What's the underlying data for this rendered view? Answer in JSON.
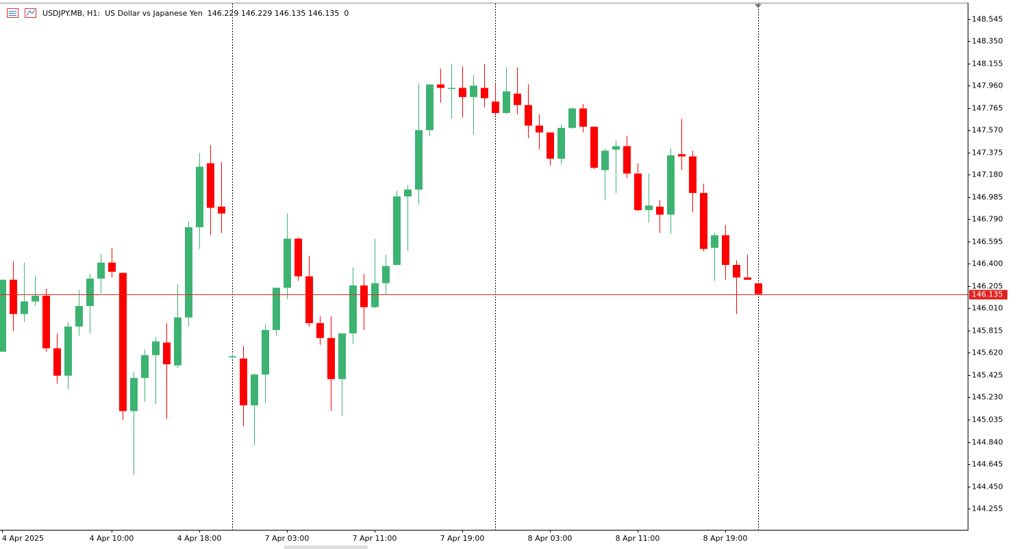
{
  "chart_data": {
    "type": "candlestick",
    "title": "USDJPY.MB, H1:  US Dollar vs Japanese Yen  146.229 146.229 146.135 146.135  0",
    "categories": [
      "4 Apr 2025",
      null,
      null,
      null,
      null,
      null,
      null,
      null,
      null,
      null,
      "4 Apr 10:00",
      null,
      null,
      null,
      null,
      null,
      null,
      null,
      "4 Apr 18:00",
      null,
      null,
      null,
      null,
      null,
      null,
      null,
      "7 Apr 03:00",
      null,
      null,
      null,
      null,
      null,
      null,
      null,
      "7 Apr 11:00",
      null,
      null,
      null,
      null,
      null,
      null,
      null,
      "7 Apr 19:00",
      null,
      null,
      null,
      null,
      null,
      null,
      null,
      "8 Apr 03:00",
      null,
      null,
      null,
      null,
      null,
      null,
      null,
      "8 Apr 11:00",
      null,
      null,
      null,
      null,
      null,
      null,
      null,
      "8 Apr 19:00",
      null,
      null,
      null
    ],
    "open": [
      145.63,
      146.26,
      145.96,
      146.07,
      146.12,
      145.66,
      145.42,
      145.85,
      146.03,
      146.27,
      146.41,
      146.32,
      145.11,
      145.4,
      145.6,
      145.71,
      145.51,
      145.93,
      146.72,
      147.28,
      146.9,
      145.58,
      145.57,
      145.16,
      145.43,
      145.82,
      146.19,
      146.62,
      146.29,
      145.88,
      145.75,
      145.39,
      145.79,
      146.21,
      146.02,
      146.23,
      146.39,
      146.99,
      147.05,
      147.57,
      147.97,
      147.94,
      147.94,
      147.86,
      147.94,
      147.82,
      147.72,
      147.89,
      147.79,
      147.61,
      147.55,
      147.32,
      147.59,
      147.76,
      147.6,
      147.22,
      147.4,
      147.43,
      147.19,
      146.87,
      146.9,
      146.83,
      147.36,
      147.34,
      147.02,
      146.54,
      146.65,
      146.39,
      146.28,
      146.229
    ],
    "high": [
      146.26,
      146.42,
      146.41,
      146.29,
      146.18,
      145.79,
      145.89,
      146.17,
      146.31,
      146.49,
      146.54,
      146.32,
      145.45,
      145.65,
      145.76,
      145.88,
      146.22,
      146.77,
      147.37,
      147.44,
      147.29,
      145.61,
      145.68,
      145.44,
      145.87,
      146.19,
      146.84,
      146.63,
      146.47,
      145.94,
      145.94,
      145.79,
      146.37,
      146.31,
      146.62,
      146.48,
      147.04,
      147.09,
      147.98,
      147.97,
      148.11,
      148.15,
      148.13,
      148.05,
      148.15,
      147.97,
      148.12,
      148.12,
      147.97,
      147.71,
      147.55,
      147.62,
      147.77,
      147.8,
      147.6,
      147.41,
      147.48,
      147.52,
      147.28,
      147.19,
      146.96,
      147.41,
      147.67,
      147.39,
      147.1,
      146.67,
      146.74,
      146.43,
      146.48,
      146.229
    ],
    "low": [
      145.63,
      145.81,
      145.89,
      146.03,
      145.63,
      145.35,
      145.3,
      145.77,
      145.79,
      146.14,
      146.28,
      145.03,
      144.55,
      145.19,
      145.17,
      145.04,
      145.49,
      145.85,
      146.53,
      146.65,
      146.67,
      145.57,
      144.98,
      144.81,
      145.18,
      145.77,
      146.09,
      146.25,
      145.85,
      145.69,
      145.11,
      145.07,
      145.7,
      145.82,
      146.01,
      146.13,
      146.39,
      146.51,
      146.92,
      147.52,
      147.81,
      147.67,
      147.68,
      147.53,
      147.77,
      147.7,
      147.71,
      147.71,
      147.5,
      147.4,
      147.26,
      147.27,
      147.58,
      147.55,
      147.23,
      146.96,
      147.02,
      147.15,
      146.86,
      146.76,
      146.67,
      146.66,
      147.22,
      146.85,
      146.51,
      146.25,
      146.26,
      145.96,
      146.26,
      146.135
    ],
    "close": [
      146.26,
      145.96,
      146.07,
      146.12,
      145.66,
      145.42,
      145.85,
      146.03,
      146.27,
      146.41,
      146.33,
      145.11,
      145.4,
      145.6,
      145.72,
      145.52,
      145.93,
      146.72,
      147.25,
      146.89,
      146.84,
      145.59,
      145.16,
      145.43,
      145.82,
      146.19,
      146.62,
      146.29,
      145.88,
      145.75,
      145.39,
      145.79,
      146.21,
      146.02,
      146.23,
      146.38,
      146.99,
      147.05,
      147.57,
      147.97,
      147.94,
      147.94,
      147.86,
      147.96,
      147.85,
      147.72,
      147.91,
      147.79,
      147.61,
      147.55,
      147.32,
      147.59,
      147.76,
      147.6,
      147.24,
      147.39,
      147.43,
      147.19,
      146.87,
      146.91,
      146.83,
      147.35,
      147.34,
      147.02,
      146.53,
      146.65,
      146.39,
      146.28,
      146.26,
      146.135
    ],
    "up_color": "#3cb371",
    "down_color": "#ff0000",
    "current_price": 146.135,
    "current_price_color": "#e32222",
    "ylim": [
      144.07,
      148.68
    ],
    "yticks": [
      148.545,
      {
        "value": 148.35,
        "label": "148.350"
      },
      148.155,
      {
        "value": 147.96,
        "label": "147.960"
      },
      147.765,
      {
        "value": 147.57,
        "label": "147.570"
      },
      147.375,
      {
        "value": 147.18,
        "label": "147.180"
      },
      146.985,
      {
        "value": 146.79,
        "label": "146.790"
      },
      146.595,
      {
        "value": 146.4,
        "label": "146.400"
      },
      146.205,
      {
        "value": 146.01,
        "label": "146.010"
      },
      145.815,
      {
        "value": 145.62,
        "label": "145.620"
      },
      145.425,
      {
        "value": 145.23,
        "label": "145.230"
      },
      145.035,
      {
        "value": 144.84,
        "label": "144.840"
      },
      144.645,
      {
        "value": 144.45,
        "label": "144.450"
      },
      144.255
    ]
  }
}
